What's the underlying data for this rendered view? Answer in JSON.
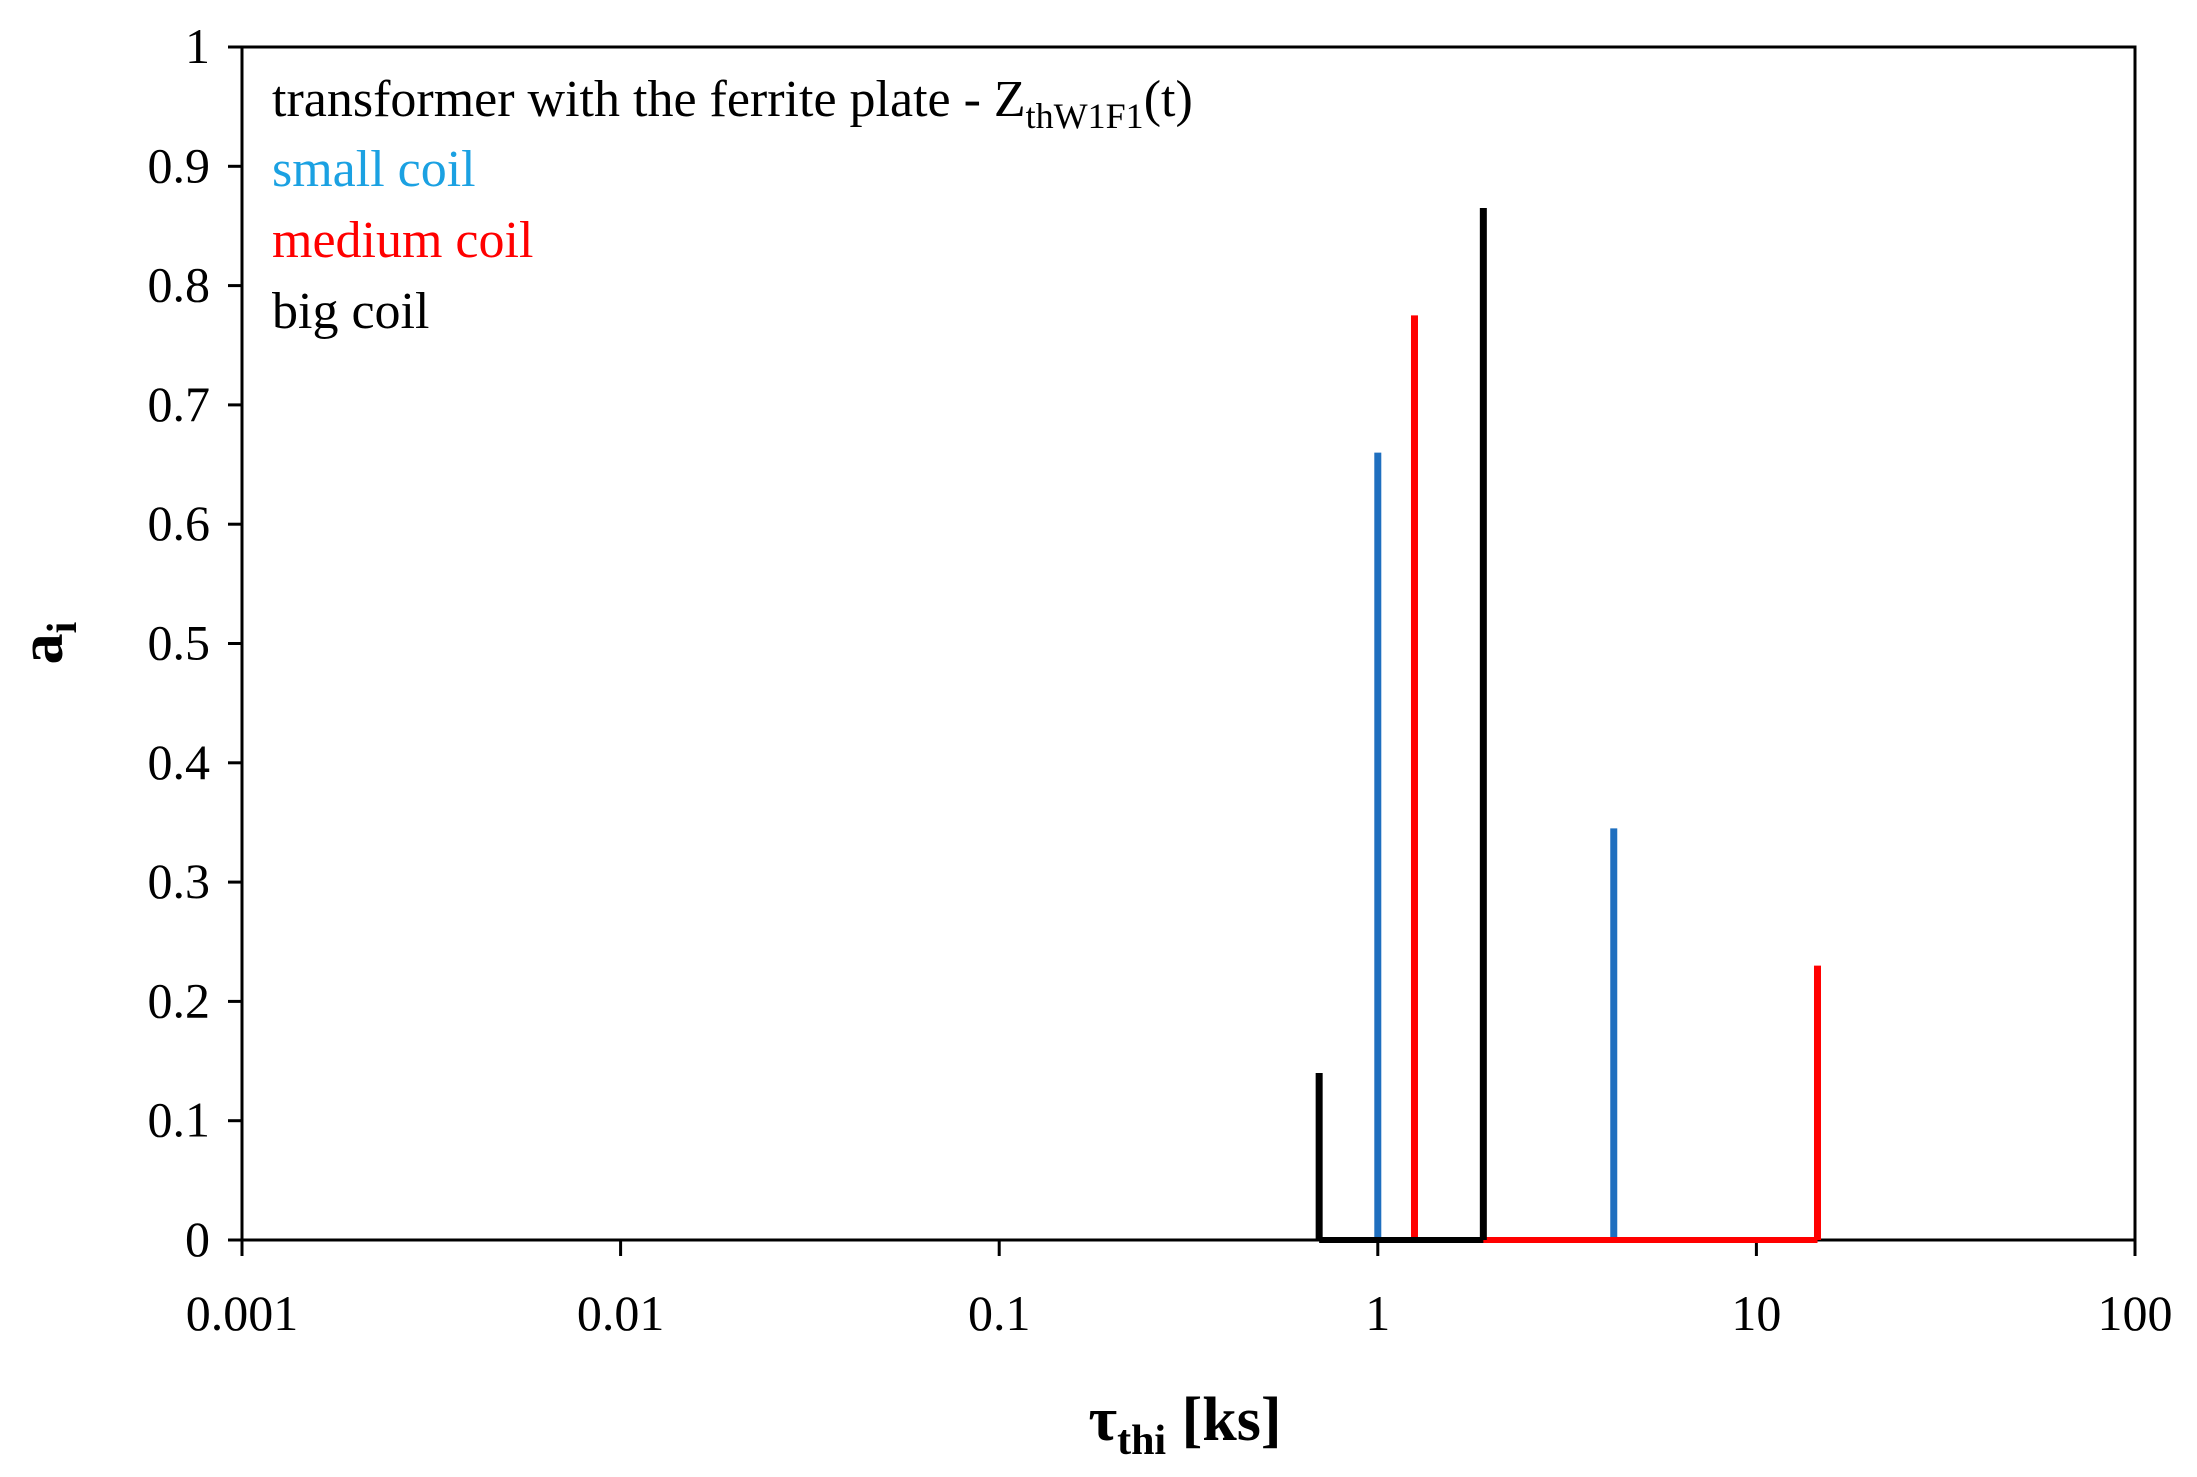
{
  "chart_data": {
    "type": "bar",
    "subtype": "stem",
    "xscale": "log",
    "xlim": [
      0.001,
      100
    ],
    "ylim": [
      0,
      1
    ],
    "grid": false,
    "legend_placement": "top-left",
    "x_ticks": [
      "0.001",
      "0.01",
      "0.1",
      "1",
      "10",
      "100"
    ],
    "x_tick_values": [
      0.001,
      0.01,
      0.1,
      1,
      10,
      100
    ],
    "y_ticks": [
      "0",
      "0.1",
      "0.2",
      "0.3",
      "0.4",
      "0.5",
      "0.6",
      "0.7",
      "0.8",
      "0.9",
      "1"
    ],
    "y_tick_values": [
      0,
      0.1,
      0.2,
      0.3,
      0.4,
      0.5,
      0.6,
      0.7,
      0.8,
      0.9,
      1
    ],
    "xlabel": {
      "main": "τ",
      "sub": "thi",
      "rest": " [ks]"
    },
    "ylabel": {
      "main": "a",
      "sub": "i"
    },
    "legend": {
      "title_main": "transformer with the ferrite plate - Z",
      "title_sub": "thW1F1",
      "title_end": "(t)",
      "entries": [
        "small coil",
        "medium coil",
        "big coil"
      ]
    },
    "legend_colors": [
      "#1ba1e2",
      "#ff0000",
      "#000000"
    ],
    "series": [
      {
        "name": "small coil",
        "color": "#1f6fbf",
        "x": [
          1.0,
          4.2
        ],
        "values": [
          0.66,
          0.345
        ]
      },
      {
        "name": "medium coil",
        "color": "#ff0000",
        "x": [
          1.25,
          14.5
        ],
        "values": [
          0.775,
          0.23
        ]
      },
      {
        "name": "big coil",
        "color": "#000000",
        "x": [
          0.7,
          1.9
        ],
        "values": [
          0.14,
          0.865
        ]
      }
    ]
  }
}
